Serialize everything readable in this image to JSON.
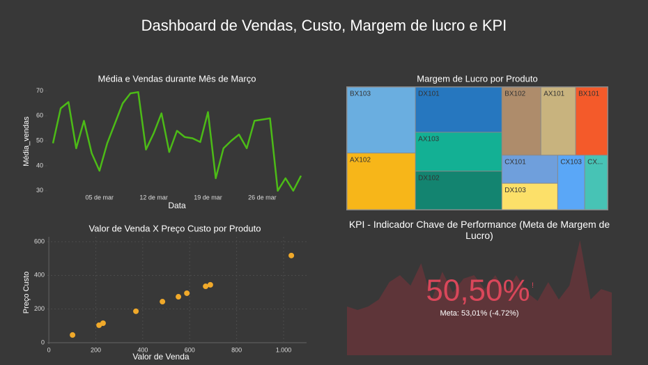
{
  "title": "Dashboard de Vendas, Custo, Margem de lucro e KPI",
  "chart_data": [
    {
      "type": "line",
      "title": "Média e Vendas durante Mês de Março",
      "x_label": "Data",
      "y_label": "Média_vendas",
      "x": [
        "02-27",
        "02-28",
        "03-01",
        "03-02",
        "03-03",
        "03-04",
        "03-05",
        "03-06",
        "03-07",
        "03-08",
        "03-09",
        "03-10",
        "03-11",
        "03-12",
        "03-13",
        "03-14",
        "03-15",
        "03-16",
        "03-17",
        "03-18",
        "03-19",
        "03-20",
        "03-21",
        "03-22",
        "03-23",
        "03-24",
        "03-25",
        "03-26",
        "03-27",
        "03-28",
        "03-29",
        "03-30",
        "03-31"
      ],
      "series": [
        {
          "name": "Média_vendas",
          "color": "#4cbb17",
          "values": [
            49,
            63,
            65.5,
            47,
            58,
            45,
            38,
            49,
            57,
            65,
            69,
            69.5,
            46.5,
            53,
            61,
            45.5,
            54,
            51.5,
            51,
            49.5,
            61.5,
            35,
            47,
            50,
            52.5,
            47,
            58,
            58.5,
            59,
            30,
            35,
            30,
            36
          ]
        }
      ],
      "xlim": [
        "02-27",
        "03-31"
      ],
      "xticks": [
        {
          "value": "03-05",
          "label": "05 de mar"
        },
        {
          "value": "03-12",
          "label": "12 de mar"
        },
        {
          "value": "03-19",
          "label": "19 de mar"
        },
        {
          "value": "03-26",
          "label": "26 de mar"
        }
      ],
      "ylim": [
        28,
        71.5
      ],
      "yticks": [
        30,
        40,
        50,
        60,
        70
      ]
    },
    {
      "type": "treemap",
      "title": "Margem de Lucro por Produto",
      "categories": [
        "BX103",
        "AX102",
        "DX101",
        "AX103",
        "DX102",
        "BX102",
        "AX101",
        "BX101",
        "CX101",
        "DX103",
        "CX103",
        "CX..."
      ],
      "values": [
        14.1,
        12.1,
        12.2,
        10.5,
        10.4,
        8.3,
        7.4,
        6.8,
        4.9,
        4.6,
        4.6,
        3.9
      ],
      "colors": [
        "#6aaee0",
        "#f7b619",
        "#2677bf",
        "#13b094",
        "#138470",
        "#ae8c6b",
        "#c8b37e",
        "#f45a2a",
        "#6f9fdc",
        "#fce069",
        "#5aa7f7",
        "#47c3b5"
      ]
    },
    {
      "type": "scatter",
      "title": "Valor de Venda X Preço Custo por Produto",
      "x_label": "Valor de Venda",
      "y_label": "Preço Custo",
      "x": [
        101,
        214,
        231,
        371,
        484,
        552,
        588,
        668,
        688,
        1033
      ],
      "values": [
        46,
        104,
        116,
        187,
        244,
        273,
        294,
        335,
        344,
        518
      ],
      "color": "#f0a92a",
      "xlim": [
        -24,
        1098
      ],
      "xticks": [
        0,
        200,
        400,
        600,
        800,
        {
          "value": 1000,
          "label": "1.000"
        }
      ],
      "ylim": [
        -33,
        629
      ],
      "yticks": [
        0,
        200,
        400,
        600
      ],
      "grid": true
    },
    {
      "type": "indicator",
      "title": "KPI - Indicador Chave de Performance (Meta de Margem de Lucro)",
      "value": 50.5,
      "value_label": "50,50%",
      "alert": "!",
      "target": 53.01,
      "delta": -4.72,
      "target_label": "Meta: 53,01% (-4.72%)",
      "color": "#d9475a",
      "trend_color": "#5e3539",
      "trend": [
        70,
        65,
        70,
        80,
        105,
        115,
        100,
        132,
        80,
        120,
        90,
        110,
        115,
        95,
        115,
        90,
        115,
        90,
        78,
        105,
        80,
        100,
        165,
        80,
        95,
        90
      ]
    }
  ]
}
